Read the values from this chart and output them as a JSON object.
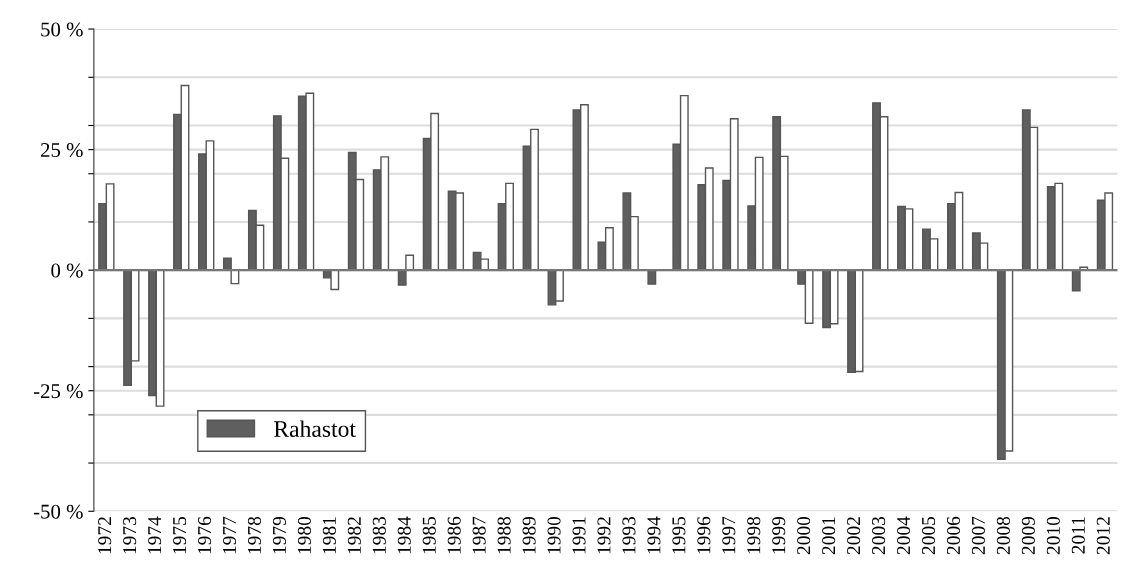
{
  "chart_data": {
    "type": "bar",
    "categories": [
      "1972",
      "1973",
      "1974",
      "1975",
      "1976",
      "1977",
      "1978",
      "1979",
      "1980",
      "1981",
      "1982",
      "1983",
      "1984",
      "1985",
      "1986",
      "1987",
      "1988",
      "1989",
      "1990",
      "1991",
      "1992",
      "1993",
      "1994",
      "1995",
      "1996",
      "1997",
      "1998",
      "1999",
      "2000",
      "2001",
      "2002",
      "2003",
      "2004",
      "2005",
      "2006",
      "2007",
      "2008",
      "2009",
      "2010",
      "2011",
      "2012"
    ],
    "series": [
      {
        "name": "Rahastot",
        "color": "#5f5f5f",
        "values": [
          13.8,
          -23.9,
          -26.0,
          32.3,
          24.1,
          2.5,
          12.4,
          32.0,
          36.1,
          -1.6,
          24.4,
          20.8,
          -3.1,
          27.3,
          16.4,
          3.7,
          13.8,
          25.7,
          -7.2,
          33.2,
          5.8,
          16.0,
          -2.9,
          26.1,
          17.7,
          18.6,
          13.3,
          31.8,
          -2.9,
          -11.9,
          -21.2,
          34.7,
          13.2,
          8.5,
          13.8,
          7.7,
          -39.2,
          33.2,
          17.3,
          -4.3,
          14.5
        ]
      },
      {
        "color": "#ffffff",
        "values": [
          17.9,
          -18.8,
          -28.2,
          38.3,
          26.8,
          -2.8,
          9.3,
          23.2,
          36.7,
          -4.0,
          18.8,
          23.5,
          3.1,
          32.5,
          16.0,
          2.3,
          18.0,
          29.2,
          -6.4,
          34.3,
          8.8,
          11.1,
          null,
          36.2,
          21.2,
          31.4,
          23.4,
          23.6,
          -11.0,
          -11.1,
          -21.0,
          31.8,
          12.7,
          6.5,
          16.1,
          5.6,
          -37.5,
          29.6,
          18.0,
          0.6,
          16.0
        ]
      }
    ],
    "ylim": [
      -50,
      50
    ],
    "yticks": [
      {
        "value": -50,
        "label": "-50 %"
      },
      {
        "value": -40,
        "label": null
      },
      {
        "value": -30,
        "label": null
      },
      {
        "value": -25,
        "label": "-25 %"
      },
      {
        "value": -20,
        "label": null
      },
      {
        "value": -10,
        "label": null
      },
      {
        "value": 0,
        "label": "0 %"
      },
      {
        "value": 10,
        "label": null
      },
      {
        "value": 20,
        "label": null
      },
      {
        "value": 25,
        "label": "25 %"
      },
      {
        "value": 30,
        "label": null
      },
      {
        "value": 40,
        "label": null
      },
      {
        "value": 50,
        "label": "50 %"
      }
    ],
    "grid": "y",
    "legend": "lower left"
  }
}
